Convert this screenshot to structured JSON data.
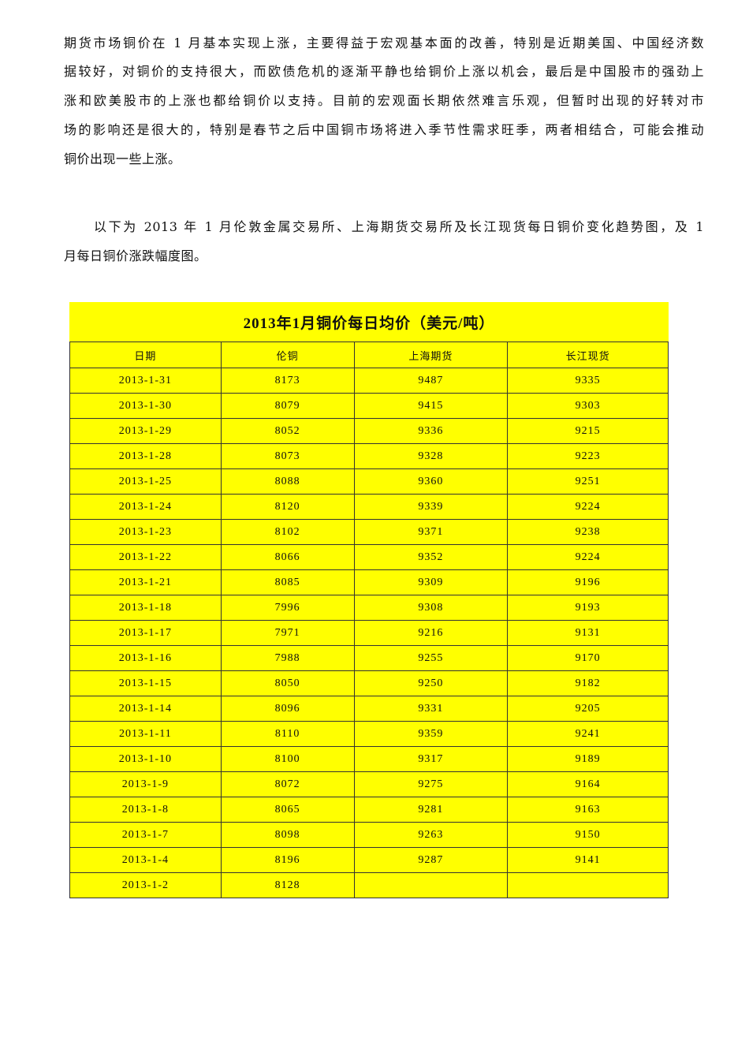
{
  "paragraph1_lines": [
    "期货市场铜价在 1 月基本实现上涨，主要得益于宏观基本面的改善，特别是近期美国、中国经济数",
    "据较好，对铜价的支持很大，而欧债危机的逐渐平静也给铜价上涨以机会，最后是中国股市的强劲上",
    "涨和欧美股市的上涨也都给铜价以支持。目前的宏观面长期依然难言乐观，但暂时出现的好转对市",
    "场的影响还是很大的，特别是春节之后中国铜市场将进入季节性需求旺季，两者相结合，可能会推动",
    "铜价出现一些上涨。"
  ],
  "paragraph2_lines": [
    "以下为 2013 年 1 月伦敦金属交易所、上海期货交易所及长江现货每日铜价变化趋势图，及 1",
    "月每日铜价涨跌幅度图。"
  ],
  "table": {
    "title": "2013年1月铜价每日均价（美元/吨）",
    "background": "#ffff00",
    "headers": [
      "日期",
      "伦铜",
      "上海期货",
      "长江现货"
    ],
    "rows": [
      [
        "2013-1-31",
        "8173",
        "9487",
        "9335"
      ],
      [
        "2013-1-30",
        "8079",
        "9415",
        "9303"
      ],
      [
        "2013-1-29",
        "8052",
        "9336",
        "9215"
      ],
      [
        "2013-1-28",
        "8073",
        "9328",
        "9223"
      ],
      [
        "2013-1-25",
        "8088",
        "9360",
        "9251"
      ],
      [
        "2013-1-24",
        "8120",
        "9339",
        "9224"
      ],
      [
        "2013-1-23",
        "8102",
        "9371",
        "9238"
      ],
      [
        "2013-1-22",
        "8066",
        "9352",
        "9224"
      ],
      [
        "2013-1-21",
        "8085",
        "9309",
        "9196"
      ],
      [
        "2013-1-18",
        "7996",
        "9308",
        "9193"
      ],
      [
        "2013-1-17",
        "7971",
        "9216",
        "9131"
      ],
      [
        "2013-1-16",
        "7988",
        "9255",
        "9170"
      ],
      [
        "2013-1-15",
        "8050",
        "9250",
        "9182"
      ],
      [
        "2013-1-14",
        "8096",
        "9331",
        "9205"
      ],
      [
        "2013-1-11",
        "8110",
        "9359",
        "9241"
      ],
      [
        "2013-1-10",
        "8100",
        "9317",
        "9189"
      ],
      [
        "2013-1-9",
        "8072",
        "9275",
        "9164"
      ],
      [
        "2013-1-8",
        "8065",
        "9281",
        "9163"
      ],
      [
        "2013-1-7",
        "8098",
        "9263",
        "9150"
      ],
      [
        "2013-1-4",
        "8196",
        "9287",
        "9141"
      ],
      [
        "2013-1-2",
        "8128",
        "",
        ""
      ]
    ]
  }
}
